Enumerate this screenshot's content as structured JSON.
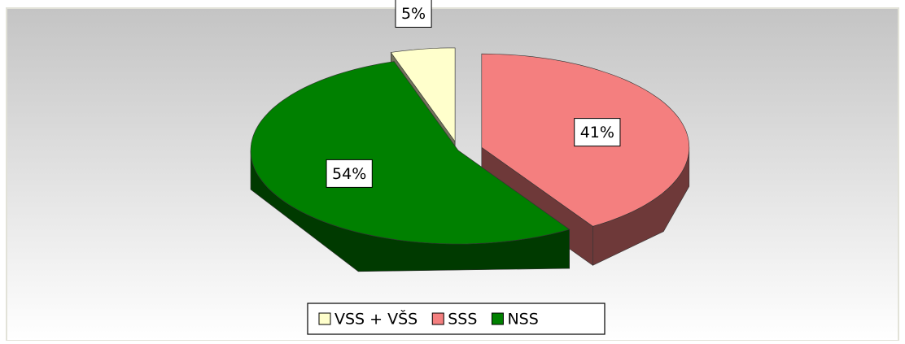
{
  "chart_data": {
    "type": "pie3d",
    "categories": [
      "VSS + VŠS",
      "SSS",
      "NSS"
    ],
    "values": [
      5,
      41,
      54
    ],
    "value_labels": [
      "5%",
      "41%",
      "54%"
    ],
    "colors": [
      "#ffffcc",
      "#f47f7f",
      "#008000"
    ],
    "legend": "bottom"
  }
}
